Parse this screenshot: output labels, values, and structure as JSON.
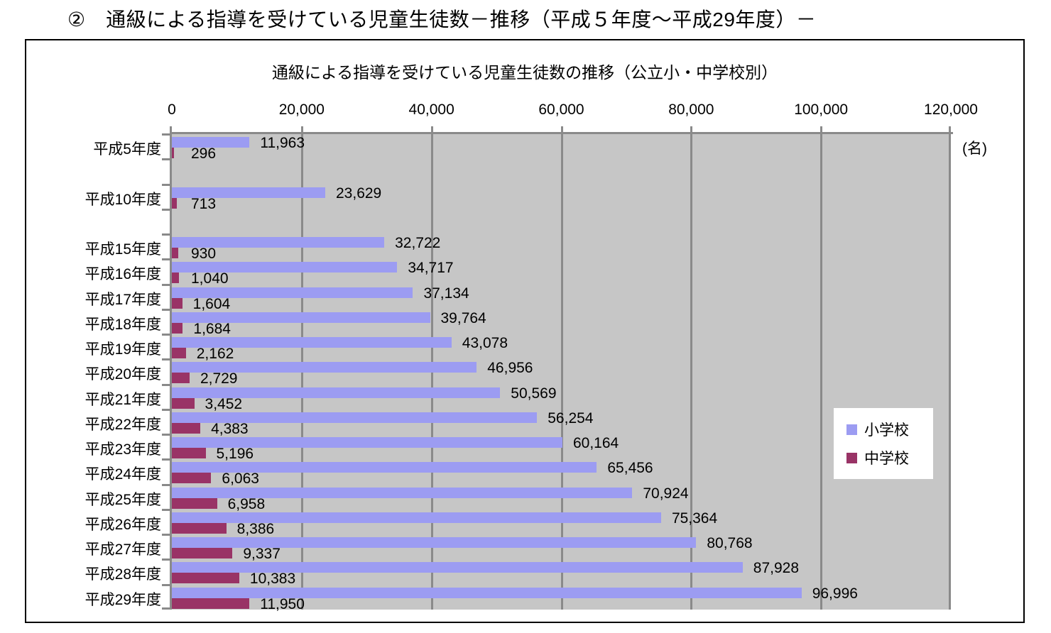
{
  "page_title": "②　通級による指導を受けている児童生徒数－推移（平成５年度～平成29年度）－",
  "chart": {
    "title": "通級による指導を受けている児童生徒数の推移（公立小・中学校別）",
    "unit_label": "(名)",
    "x_ticks": [
      "0",
      "20,000",
      "40,000",
      "60,000",
      "80,000",
      "100,000",
      "120,000"
    ],
    "legend": {
      "elementary": "小学校",
      "junior_high": "中学校"
    },
    "colors": {
      "elementary": "#9C9CF2",
      "junior_high": "#993366",
      "plot_bg": "#C6C6C6",
      "grid": "#8A8A8A"
    }
  },
  "chart_data": {
    "type": "bar",
    "orientation": "horizontal",
    "title": "通級による指導を受けている児童生徒数の推移（公立小・中学校別）",
    "unit": "名",
    "xlim": [
      0,
      120000
    ],
    "x_tick_interval": 20000,
    "grid": true,
    "value_labels": true,
    "legend_position": "middle-right",
    "categories": [
      "平成5年度",
      "平成10年度",
      "平成15年度",
      "平成16年度",
      "平成17年度",
      "平成18年度",
      "平成19年度",
      "平成20年度",
      "平成21年度",
      "平成22年度",
      "平成23年度",
      "平成24年度",
      "平成25年度",
      "平成26年度",
      "平成27年度",
      "平成28年度",
      "平成29年度"
    ],
    "slot_index": [
      0,
      2,
      4,
      5,
      6,
      7,
      8,
      9,
      10,
      11,
      12,
      13,
      14,
      15,
      16,
      17,
      18
    ],
    "total_slots": 19,
    "series": [
      {
        "name": "小学校",
        "color": "#9C9CF2",
        "values": [
          11963,
          23629,
          32722,
          34717,
          37134,
          39764,
          43078,
          46956,
          50569,
          56254,
          60164,
          65456,
          70924,
          75364,
          80768,
          87928,
          96996
        ]
      },
      {
        "name": "中学校",
        "color": "#993366",
        "values": [
          296,
          713,
          930,
          1040,
          1604,
          1684,
          2162,
          2729,
          3452,
          4383,
          5196,
          6063,
          6958,
          8386,
          9337,
          10383,
          11950
        ]
      }
    ]
  }
}
